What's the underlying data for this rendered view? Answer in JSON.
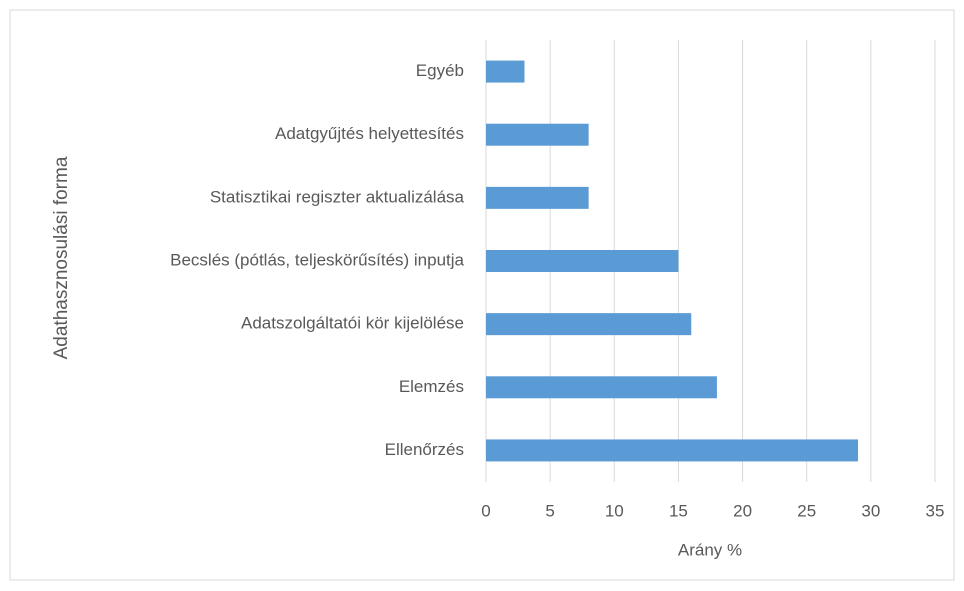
{
  "chart_data": {
    "type": "barh",
    "categories": [
      "Egyéb",
      "Adatgyűjtés helyettesítés",
      "Statisztikai regiszter aktualizálása",
      "Becslés (pótlás, teljeskörűsítés) inputja",
      "Adatszolgáltatói kör kijelölése",
      "Elemzés",
      "Ellenőrzés"
    ],
    "values": [
      3,
      8,
      8,
      15,
      16,
      18,
      29
    ],
    "color": "#5b9bd5",
    "xlabel": "Arány %",
    "ylabel": "Adathasznosulási forma",
    "xlim": [
      0,
      35
    ],
    "xticks": [
      0,
      5,
      10,
      15,
      20,
      25,
      30,
      35
    ],
    "grid": true
  }
}
